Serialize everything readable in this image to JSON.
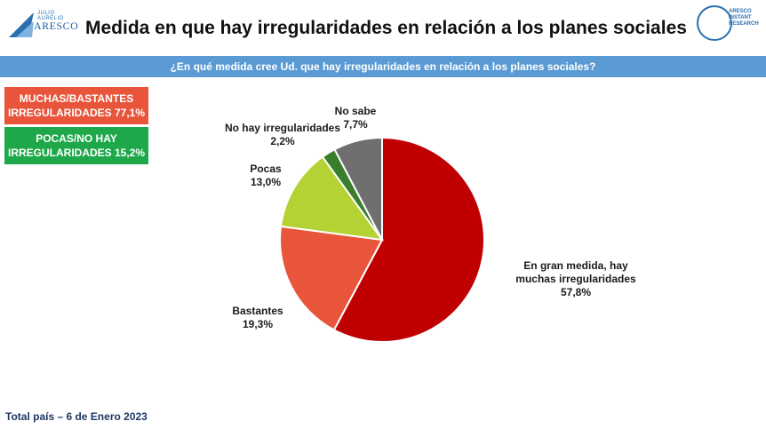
{
  "header": {
    "logo_left_small": "JULIO AURELIO",
    "logo_left_name": "ARESCO",
    "title": "Medida en que hay irregularidades en relación a los planes sociales",
    "logo_right_text": [
      "ARESCO",
      "INSTANT",
      "RESEARCH"
    ]
  },
  "question": "¿En qué medida cree Ud. que hay irregularidades en relación a los planes sociales?",
  "summary_boxes": [
    {
      "line1": "MUCHAS/BASTANTES",
      "line2": "IRREGULARIDADES 77,1%",
      "color": "#e8553b"
    },
    {
      "line1": "POCAS/NO HAY",
      "line2": "IRREGULARIDADES 15,2%",
      "color": "#1ea84a"
    }
  ],
  "chart_data": {
    "type": "pie",
    "start_angle_deg": 0,
    "direction": "clockwise",
    "slices": [
      {
        "label_lines": [
          "En gran medida, hay",
          "muchas irregularidades"
        ],
        "value_label": "57,8%",
        "value": 57.8,
        "color": "#c00000"
      },
      {
        "label_lines": [
          "Bastantes"
        ],
        "value_label": "19,3%",
        "value": 19.3,
        "color": "#e8553b"
      },
      {
        "label_lines": [
          "Pocas"
        ],
        "value_label": "13,0%",
        "value": 13.0,
        "color": "#b4d234"
      },
      {
        "label_lines": [
          "No hay irregularidades"
        ],
        "value_label": "2,2%",
        "value": 2.2,
        "color": "#3a7d2c"
      },
      {
        "label_lines": [
          "No sabe"
        ],
        "value_label": "7,7%",
        "value": 7.7,
        "color": "#6f6f6f"
      }
    ]
  },
  "footer": "Total país – 6 de Enero 2023"
}
